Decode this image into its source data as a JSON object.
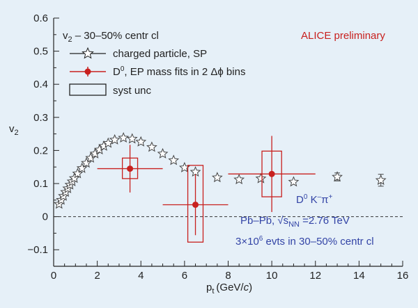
{
  "chart_data": {
    "type": "scatter",
    "xlabel": "p",
    "xlabel_sub": "t",
    "xlabel_unit": "(GeV/",
    "xlabel_unit_italic": "c",
    "xlabel_unit_close": ")",
    "ylabel": "v",
    "ylabel_sub": "2",
    "xlim": [
      0,
      16
    ],
    "ylim": [
      -0.15,
      0.6
    ],
    "x_ticks": [
      0,
      2,
      4,
      6,
      8,
      10,
      12,
      14,
      16
    ],
    "x_tick_labels": [
      "0",
      "2",
      "4",
      "6",
      "8",
      "10",
      "12",
      "14",
      "16"
    ],
    "y_ticks": [
      -0.1,
      0,
      0.1,
      0.2,
      0.3,
      0.4,
      0.5,
      0.6
    ],
    "y_tick_labels": [
      "−0.1",
      "0",
      "0.1",
      "0.2",
      "0.3",
      "0.4",
      "0.5",
      "0.6"
    ],
    "grid": false,
    "zero_line": {
      "y": 0,
      "style": "dashed"
    },
    "legend_placement": "top-left",
    "legend": {
      "header_v": "v",
      "header_sub": "2",
      "header_rest": " – 30–50% centr cl",
      "entries": [
        {
          "label": "charged particle, SP",
          "marker": "star"
        },
        {
          "label_main": "D",
          "label_sup": "0",
          "label_rest": ", EP mass fits in 2 Δϕ bins",
          "marker": "circle"
        },
        {
          "label": "syst unc",
          "marker": "box"
        }
      ]
    },
    "annotations": {
      "preliminary": "ALICE preliminary",
      "decay_d": "D",
      "decay_sup": "0",
      "decay_rest1": " K",
      "decay_sup2": "–",
      "decay_pi": "π",
      "decay_sup3": "+",
      "system_text": "Pb–Pb, √s",
      "system_sub": "NN",
      "system_rest": " =2.76 TeV",
      "events_prefix": "3×10",
      "events_sup": "6",
      "events_rest": " evts in 30–50% centr cl"
    },
    "series": [
      {
        "name": "charged particle, SP",
        "marker": "star",
        "points": [
          {
            "x": 0.25,
            "y": 0.038,
            "yerr": 0
          },
          {
            "x": 0.35,
            "y": 0.05,
            "yerr": 0
          },
          {
            "x": 0.45,
            "y": 0.062,
            "yerr": 0
          },
          {
            "x": 0.55,
            "y": 0.074,
            "yerr": 0
          },
          {
            "x": 0.65,
            "y": 0.085,
            "yerr": 0
          },
          {
            "x": 0.75,
            "y": 0.096,
            "yerr": 0
          },
          {
            "x": 0.85,
            "y": 0.106,
            "yerr": 0
          },
          {
            "x": 0.95,
            "y": 0.116,
            "yerr": 0
          },
          {
            "x": 1.1,
            "y": 0.13,
            "yerr": 0
          },
          {
            "x": 1.3,
            "y": 0.146,
            "yerr": 0
          },
          {
            "x": 1.5,
            "y": 0.162,
            "yerr": 0
          },
          {
            "x": 1.7,
            "y": 0.177,
            "yerr": 0
          },
          {
            "x": 1.9,
            "y": 0.19,
            "yerr": 0
          },
          {
            "x": 2.1,
            "y": 0.202,
            "yerr": 0
          },
          {
            "x": 2.3,
            "y": 0.213,
            "yerr": 0
          },
          {
            "x": 2.5,
            "y": 0.222,
            "yerr": 0
          },
          {
            "x": 2.8,
            "y": 0.232,
            "yerr": 0
          },
          {
            "x": 3.2,
            "y": 0.238,
            "yerr": 0
          },
          {
            "x": 3.6,
            "y": 0.235,
            "yerr": 0
          },
          {
            "x": 4.0,
            "y": 0.226,
            "yerr": 0
          },
          {
            "x": 4.5,
            "y": 0.21,
            "yerr": 0
          },
          {
            "x": 5.0,
            "y": 0.19,
            "yerr": 0
          },
          {
            "x": 5.5,
            "y": 0.17,
            "yerr": 0
          },
          {
            "x": 6.0,
            "y": 0.148,
            "yerr": 0
          },
          {
            "x": 6.5,
            "y": 0.135,
            "yerr": 0
          },
          {
            "x": 7.5,
            "y": 0.118,
            "yerr": 0
          },
          {
            "x": 8.5,
            "y": 0.112,
            "yerr": 0
          },
          {
            "x": 9.5,
            "y": 0.115,
            "yerr": 0
          },
          {
            "x": 11.0,
            "y": 0.105,
            "yerr": 0
          },
          {
            "x": 13.0,
            "y": 0.12,
            "yerr": 0.012
          },
          {
            "x": 15.0,
            "y": 0.11,
            "yerr": 0.018
          }
        ]
      },
      {
        "name": "D0, EP mass fits in 2 Δϕ bins",
        "marker": "circle",
        "color": "#c8201e",
        "points": [
          {
            "x": 3.5,
            "y": 0.145,
            "xerr": 1.5,
            "yerr": 0.072,
            "syst_low": 0.115,
            "syst_high": 0.177,
            "syst_halfwidth": 0.35
          },
          {
            "x": 6.5,
            "y": 0.036,
            "xerr": 1.5,
            "yerr": 0.092,
            "syst_low": -0.077,
            "syst_high": 0.155,
            "syst_halfwidth": 0.35
          },
          {
            "x": 10.0,
            "y": 0.129,
            "xerr": 2.0,
            "yerr": 0.115,
            "syst_low": 0.06,
            "syst_high": 0.198,
            "syst_halfwidth": 0.45
          }
        ]
      }
    ],
    "colors": {
      "background": "#e6f0f8",
      "axis": "#222222",
      "star": "#444444",
      "d_meson": "#c8201e",
      "annotation_blue": "#3344a6",
      "preliminary_red": "#c8201e"
    }
  }
}
